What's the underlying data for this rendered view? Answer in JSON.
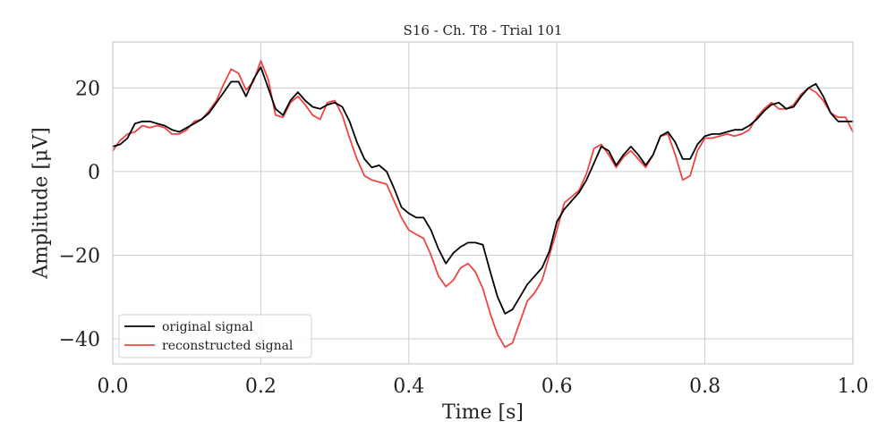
{
  "chart_data": {
    "type": "line",
    "title": "S16 - Ch. T8 - Trial 101",
    "xlabel": "Time [s]",
    "ylabel": "Amplitude [μV]",
    "xlim": [
      0.0,
      1.0
    ],
    "ylim": [
      -46,
      31
    ],
    "xticks": [
      0.0,
      0.2,
      0.4,
      0.6,
      0.8,
      1.0
    ],
    "xtick_labels": [
      "0.0",
      "0.2",
      "0.4",
      "0.6",
      "0.8",
      "1.0"
    ],
    "yticks": [
      20,
      0,
      -20,
      -40
    ],
    "ytick_labels": [
      "20",
      "0",
      "−20",
      "−40"
    ],
    "grid": true,
    "legend_position": "lower-left",
    "series": [
      {
        "name": "original signal",
        "color": "#000000",
        "x": [
          0.0,
          0.01,
          0.02,
          0.03,
          0.04,
          0.05,
          0.06,
          0.07,
          0.08,
          0.09,
          0.1,
          0.11,
          0.12,
          0.13,
          0.14,
          0.15,
          0.16,
          0.17,
          0.18,
          0.19,
          0.2,
          0.21,
          0.22,
          0.23,
          0.24,
          0.25,
          0.26,
          0.27,
          0.28,
          0.29,
          0.3,
          0.31,
          0.32,
          0.33,
          0.34,
          0.35,
          0.36,
          0.37,
          0.38,
          0.39,
          0.4,
          0.41,
          0.42,
          0.43,
          0.44,
          0.45,
          0.46,
          0.47,
          0.48,
          0.49,
          0.5,
          0.51,
          0.52,
          0.53,
          0.54,
          0.55,
          0.56,
          0.57,
          0.58,
          0.59,
          0.6,
          0.61,
          0.62,
          0.63,
          0.64,
          0.65,
          0.66,
          0.67,
          0.68,
          0.69,
          0.7,
          0.71,
          0.72,
          0.73,
          0.74,
          0.75,
          0.76,
          0.77,
          0.78,
          0.79,
          0.8,
          0.81,
          0.82,
          0.83,
          0.84,
          0.85,
          0.86,
          0.87,
          0.88,
          0.89,
          0.9,
          0.91,
          0.92,
          0.93,
          0.94,
          0.95,
          0.96,
          0.97,
          0.98,
          0.99,
          1.0
        ],
        "y": [
          6.0,
          6.5,
          8.0,
          11.5,
          12.0,
          12.0,
          11.5,
          11.0,
          10.0,
          9.5,
          10.5,
          11.5,
          12.5,
          14.0,
          16.5,
          19.0,
          21.5,
          21.5,
          18.0,
          22.0,
          25.0,
          20.0,
          15.0,
          13.5,
          17.0,
          19.0,
          17.0,
          15.5,
          15.0,
          16.0,
          16.5,
          15.5,
          12.0,
          7.0,
          3.0,
          1.0,
          1.5,
          0.0,
          -4.0,
          -8.5,
          -10.0,
          -11.0,
          -11.0,
          -14.0,
          -18.5,
          -22.0,
          -19.5,
          -18.0,
          -17.0,
          -17.0,
          -17.5,
          -24.0,
          -30.0,
          -34.0,
          -33.0,
          -30.0,
          -27.0,
          -25.0,
          -23.0,
          -19.0,
          -12.0,
          -9.0,
          -7.0,
          -5.0,
          -2.0,
          2.0,
          6.0,
          5.0,
          1.5,
          4.0,
          6.0,
          4.0,
          1.5,
          4.0,
          8.5,
          9.5,
          7.0,
          3.0,
          3.0,
          6.5,
          8.5,
          9.0,
          9.0,
          9.5,
          10.0,
          10.0,
          11.0,
          12.5,
          14.5,
          16.0,
          16.5,
          15.0,
          15.5,
          18.0,
          20.0,
          21.0,
          18.0,
          14.0,
          12.0,
          12.0,
          12.0
        ]
      },
      {
        "name": "reconstructed signal",
        "color": "#ef4444",
        "x": [
          0.0,
          0.01,
          0.02,
          0.03,
          0.04,
          0.05,
          0.06,
          0.07,
          0.08,
          0.09,
          0.1,
          0.11,
          0.12,
          0.13,
          0.14,
          0.15,
          0.16,
          0.17,
          0.18,
          0.19,
          0.2,
          0.21,
          0.22,
          0.23,
          0.24,
          0.25,
          0.26,
          0.27,
          0.28,
          0.29,
          0.3,
          0.31,
          0.32,
          0.33,
          0.34,
          0.35,
          0.36,
          0.37,
          0.38,
          0.39,
          0.4,
          0.41,
          0.42,
          0.43,
          0.44,
          0.45,
          0.46,
          0.47,
          0.48,
          0.49,
          0.5,
          0.51,
          0.52,
          0.53,
          0.54,
          0.55,
          0.56,
          0.57,
          0.58,
          0.59,
          0.6,
          0.61,
          0.62,
          0.63,
          0.64,
          0.65,
          0.66,
          0.67,
          0.68,
          0.69,
          0.7,
          0.71,
          0.72,
          0.73,
          0.74,
          0.75,
          0.76,
          0.77,
          0.78,
          0.79,
          0.8,
          0.81,
          0.82,
          0.83,
          0.84,
          0.85,
          0.86,
          0.87,
          0.88,
          0.89,
          0.9,
          0.91,
          0.92,
          0.93,
          0.94,
          0.95,
          0.96,
          0.97,
          0.98,
          0.99,
          1.0
        ],
        "y": [
          5.0,
          7.5,
          9.0,
          9.5,
          11.0,
          10.5,
          11.0,
          10.5,
          9.0,
          9.0,
          10.0,
          12.0,
          12.5,
          14.5,
          17.0,
          21.0,
          24.5,
          23.5,
          19.5,
          21.5,
          26.5,
          22.0,
          13.5,
          13.0,
          16.5,
          18.0,
          16.0,
          13.5,
          12.5,
          16.5,
          17.0,
          13.5,
          8.0,
          3.0,
          -1.0,
          -2.0,
          -2.5,
          -3.0,
          -7.0,
          -11.0,
          -14.0,
          -15.0,
          -16.0,
          -20.0,
          -25.0,
          -27.5,
          -26.0,
          -23.0,
          -22.0,
          -24.0,
          -28.0,
          -34.0,
          -39.0,
          -42.0,
          -41.0,
          -36.0,
          -31.0,
          -29.0,
          -26.0,
          -20.0,
          -14.0,
          -7.5,
          -6.0,
          -4.5,
          -0.5,
          5.5,
          6.5,
          4.0,
          1.0,
          3.5,
          5.0,
          3.0,
          1.0,
          4.0,
          8.5,
          9.0,
          4.0,
          -2.0,
          -1.0,
          5.0,
          8.0,
          8.0,
          8.5,
          9.0,
          8.5,
          9.0,
          10.0,
          13.0,
          15.0,
          16.5,
          15.0,
          15.0,
          16.0,
          18.5,
          20.0,
          19.0,
          17.0,
          14.0,
          13.0,
          13.0,
          9.5
        ]
      }
    ]
  }
}
